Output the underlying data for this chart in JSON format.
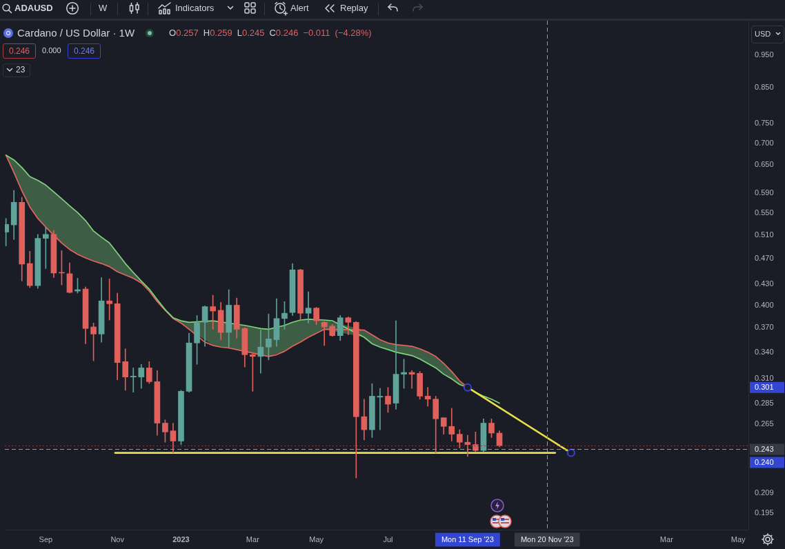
{
  "chart_data": {
    "type": "candlestick",
    "title": "Cardano / US Dollar · 1W",
    "x": [
      "2022-08-01",
      "2022-08-08",
      "2022-08-15",
      "2022-08-22",
      "2022-08-29",
      "2022-09-05",
      "2022-09-12",
      "2022-09-19",
      "2022-09-26",
      "2022-10-03",
      "2022-10-10",
      "2022-10-17",
      "2022-10-24",
      "2022-10-31",
      "2022-11-07",
      "2022-11-14",
      "2022-11-21",
      "2022-11-28",
      "2022-12-05",
      "2022-12-12",
      "2022-12-19",
      "2022-12-26",
      "2023-01-02",
      "2023-01-09",
      "2023-01-16",
      "2023-01-23",
      "2023-01-30",
      "2023-02-06",
      "2023-02-13",
      "2023-02-20",
      "2023-02-27",
      "2023-03-06",
      "2023-03-13",
      "2023-03-20",
      "2023-03-27",
      "2023-04-03",
      "2023-04-10",
      "2023-04-17",
      "2023-04-24",
      "2023-05-01",
      "2023-05-08",
      "2023-05-15",
      "2023-05-22",
      "2023-05-29",
      "2023-06-05",
      "2023-06-12",
      "2023-06-19",
      "2023-06-26",
      "2023-07-03",
      "2023-07-10",
      "2023-07-17",
      "2023-07-24",
      "2023-07-31",
      "2023-08-07",
      "2023-08-14",
      "2023-08-21",
      "2023-08-28",
      "2023-09-04",
      "2023-09-11",
      "2023-09-18",
      "2023-09-25",
      "2023-10-02",
      "2023-10-09"
    ],
    "ohlc": [
      [
        0.515,
        0.54,
        0.491,
        0.529
      ],
      [
        0.528,
        0.595,
        0.502,
        0.571
      ],
      [
        0.571,
        0.581,
        0.435,
        0.461
      ],
      [
        0.462,
        0.482,
        0.425,
        0.428
      ],
      [
        0.428,
        0.511,
        0.424,
        0.504
      ],
      [
        0.504,
        0.524,
        0.454,
        0.511
      ],
      [
        0.511,
        0.518,
        0.44,
        0.447
      ],
      [
        0.448,
        0.483,
        0.429,
        0.447
      ],
      [
        0.446,
        0.463,
        0.417,
        0.418
      ],
      [
        0.42,
        0.439,
        0.417,
        0.422
      ],
      [
        0.423,
        0.426,
        0.35,
        0.369
      ],
      [
        0.371,
        0.376,
        0.33,
        0.362
      ],
      [
        0.362,
        0.44,
        0.352,
        0.406
      ],
      [
        0.406,
        0.438,
        0.38,
        0.402
      ],
      [
        0.402,
        0.417,
        0.309,
        0.328
      ],
      [
        0.329,
        0.344,
        0.298,
        0.312
      ],
      [
        0.312,
        0.322,
        0.296,
        0.313
      ],
      [
        0.312,
        0.326,
        0.3,
        0.322
      ],
      [
        0.322,
        0.329,
        0.305,
        0.307
      ],
      [
        0.307,
        0.319,
        0.255,
        0.266
      ],
      [
        0.266,
        0.269,
        0.249,
        0.258
      ],
      [
        0.259,
        0.266,
        0.24,
        0.25
      ],
      [
        0.25,
        0.298,
        0.247,
        0.297
      ],
      [
        0.297,
        0.363,
        0.296,
        0.351
      ],
      [
        0.351,
        0.386,
        0.326,
        0.376
      ],
      [
        0.377,
        0.399,
        0.347,
        0.398
      ],
      [
        0.398,
        0.414,
        0.368,
        0.392
      ],
      [
        0.393,
        0.404,
        0.355,
        0.364
      ],
      [
        0.364,
        0.422,
        0.346,
        0.4
      ],
      [
        0.4,
        0.41,
        0.357,
        0.368
      ],
      [
        0.369,
        0.37,
        0.323,
        0.337
      ],
      [
        0.337,
        0.338,
        0.297,
        0.335
      ],
      [
        0.335,
        0.367,
        0.316,
        0.346
      ],
      [
        0.346,
        0.388,
        0.331,
        0.356
      ],
      [
        0.355,
        0.409,
        0.347,
        0.382
      ],
      [
        0.382,
        0.405,
        0.368,
        0.389
      ],
      [
        0.39,
        0.462,
        0.386,
        0.452
      ],
      [
        0.452,
        0.453,
        0.38,
        0.389
      ],
      [
        0.389,
        0.419,
        0.376,
        0.396
      ],
      [
        0.396,
        0.397,
        0.374,
        0.379
      ],
      [
        0.377,
        0.378,
        0.348,
        0.371
      ],
      [
        0.372,
        0.374,
        0.359,
        0.36
      ],
      [
        0.36,
        0.386,
        0.354,
        0.383
      ],
      [
        0.383,
        0.384,
        0.361,
        0.377
      ],
      [
        0.377,
        0.378,
        0.22,
        0.272
      ],
      [
        0.272,
        0.289,
        0.251,
        0.26
      ],
      [
        0.26,
        0.305,
        0.253,
        0.292
      ],
      [
        0.291,
        0.3,
        0.26,
        0.292
      ],
      [
        0.292,
        0.301,
        0.276,
        0.284
      ],
      [
        0.285,
        0.379,
        0.279,
        0.315
      ],
      [
        0.315,
        0.332,
        0.3,
        0.317
      ],
      [
        0.317,
        0.319,
        0.3,
        0.315
      ],
      [
        0.316,
        0.318,
        0.289,
        0.292
      ],
      [
        0.292,
        0.301,
        0.282,
        0.289
      ],
      [
        0.289,
        0.292,
        0.24,
        0.27
      ],
      [
        0.271,
        0.271,
        0.256,
        0.263
      ],
      [
        0.263,
        0.28,
        0.25,
        0.256
      ],
      [
        0.256,
        0.26,
        0.244,
        0.249
      ],
      [
        0.249,
        0.255,
        0.237,
        0.247
      ],
      [
        0.247,
        0.258,
        0.241,
        0.242
      ],
      [
        0.242,
        0.27,
        0.241,
        0.266
      ],
      [
        0.266,
        0.27,
        0.253,
        0.257
      ],
      [
        0.257,
        0.259,
        0.245,
        0.246
      ]
    ],
    "colors": [
      "#5fa39b",
      "#5fa39b",
      "#e0605c",
      "#e0605c",
      "#5fa39b",
      "#5fa39b",
      "#e0605c",
      "#e0605c",
      "#e0605c",
      "#5fa39b",
      "#e0605c",
      "#e0605c",
      "#5fa39b",
      "#e0605c",
      "#e0605c",
      "#e0605c",
      "#5fa39b",
      "#5fa39b",
      "#e0605c",
      "#e0605c",
      "#e0605c",
      "#e0605c",
      "#5fa39b",
      "#5fa39b",
      "#5fa39b",
      "#5fa39b",
      "#e0605c",
      "#e0605c",
      "#5fa39b",
      "#e0605c",
      "#e0605c",
      "#e0605c",
      "#5fa39b",
      "#5fa39b",
      "#5fa39b",
      "#5fa39b",
      "#5fa39b",
      "#e0605c",
      "#5fa39b",
      "#e0605c",
      "#e0605c",
      "#e0605c",
      "#5fa39b",
      "#e0605c",
      "#e0605c",
      "#e0605c",
      "#5fa39b",
      "#5fa39b",
      "#e0605c",
      "#5fa39b",
      "#5fa39b",
      "#e0605c",
      "#e0605c",
      "#e0605c",
      "#e0605c",
      "#e0605c",
      "#e0605c",
      "#e0605c",
      "#e0605c",
      "#e0605c",
      "#5fa39b",
      "#e0605c",
      "#e0605c"
    ],
    "series": [
      {
        "type": "line",
        "color": "#80d47c",
        "values": [
          0.672,
          0.661,
          0.644,
          0.624,
          0.616,
          0.606,
          0.592,
          0.578,
          0.564,
          0.551,
          0.536,
          0.517,
          0.506,
          0.496,
          0.479,
          0.462,
          0.448,
          0.435,
          0.423,
          0.408,
          0.394,
          0.383,
          0.379,
          0.377,
          null,
          null,
          0.379,
          null,
          null,
          null,
          0.373,
          0.371,
          0.369,
          0.368,
          null,
          0.373,
          0.377,
          0.38,
          0.381,
          null,
          0.38,
          0.379,
          null,
          null,
          null,
          0.358,
          0.35,
          0.346,
          0.343,
          0.34,
          0.338,
          0.336,
          0.332,
          0.327,
          0.322,
          0.315,
          0.31,
          0.304,
          0.301,
          0.296,
          0.292,
          0.289,
          0.285
        ],
        "upper": [
          0.672,
          0.661,
          0.644,
          0.624,
          0.616,
          0.606,
          null,
          0.578,
          0.564,
          0.551,
          0.536,
          0.517,
          0.506,
          0.496,
          0.479,
          0.462,
          0.448,
          0.435,
          0.423,
          0.408,
          0.394,
          0.383,
          0.379,
          0.377,
          null,
          null,
          0.379,
          null,
          null,
          null,
          null,
          null,
          null,
          0.368,
          null,
          0.373,
          0.377,
          0.38,
          0.381,
          null,
          0.38,
          null,
          null,
          null,
          null,
          0.367,
          0.361,
          0.355,
          0.351,
          0.349,
          0.348,
          0.347,
          0.344,
          0.34,
          0.335,
          0.327,
          0.318,
          0.308,
          0.301,
          null,
          null,
          null,
          null
        ],
        "lower": [
          0.672,
          0.633,
          0.594,
          0.562,
          0.54,
          0.524,
          null,
          0.496,
          0.485,
          0.477,
          0.471,
          0.466,
          0.462,
          0.457,
          0.449,
          0.444,
          0.439,
          0.432,
          0.42,
          0.405,
          0.393,
          0.382,
          0.376,
          0.368,
          null,
          null,
          0.348,
          null,
          null,
          null,
          null,
          null,
          null,
          0.335,
          null,
          0.341,
          0.347,
          0.352,
          0.358,
          null,
          0.368,
          null,
          null,
          null,
          null,
          0.358,
          0.35,
          0.346,
          0.343,
          0.34,
          0.338,
          0.336,
          0.332,
          0.327,
          0.322,
          0.315,
          0.31,
          0.304,
          0.301,
          null,
          null,
          null,
          null
        ]
      },
      {
        "type": "line",
        "color": "#e5645e",
        "values": [
          0.672,
          0.633,
          0.594,
          0.562,
          0.54,
          0.524,
          null,
          0.496,
          0.485,
          0.477,
          0.471,
          0.466,
          0.462,
          0.457,
          0.449,
          0.444,
          0.439,
          0.432,
          0.42,
          0.405,
          0.393,
          0.382,
          0.376,
          0.368,
          null,
          0.352,
          0.348,
          0.346,
          0.345,
          0.343,
          null,
          null,
          null,
          0.335,
          0.337,
          0.341,
          0.347,
          0.352,
          0.358,
          0.363,
          0.368,
          null,
          null,
          null,
          null,
          0.367,
          0.361,
          0.355,
          0.351,
          0.349,
          0.348,
          0.347,
          0.344,
          0.34,
          0.335,
          0.327,
          0.318,
          0.308,
          0.301,
          null,
          null,
          null,
          null
        ]
      },
      {
        "type": "line",
        "color": "#e8e04a",
        "x": [
          "2022-11-05",
          "2023-11-27"
        ],
        "values": [
          0.24,
          0.24
        ]
      },
      {
        "type": "line",
        "color": "#e8e04a",
        "x": [
          "2023-09-11",
          "2023-12-11"
        ],
        "values": [
          0.301,
          0.24
        ],
        "marker": "circle",
        "colors": [
          "#3343d8",
          "#3343d8"
        ]
      }
    ],
    "xlim": [
      "2022-07-31",
      "2024-05-15"
    ],
    "xticks": [
      {
        "value": "2022-09-05",
        "label": "Sep"
      },
      {
        "value": "2022-11-07",
        "label": "Nov"
      },
      {
        "value": "2023-01-02",
        "label": "2023"
      },
      {
        "value": "2023-03-06",
        "label": "Mar"
      },
      {
        "value": "2023-05-01",
        "label": "May"
      },
      {
        "value": "2023-07-03",
        "label": "Jul"
      },
      {
        "value": "2024-03-04",
        "label": "Mar"
      },
      {
        "value": "2024-05-06",
        "label": "May"
      }
    ],
    "ylim": [
      0.184,
      1.07
    ],
    "yticks": [
      {
        "value": 0.195,
        "label": "0.195"
      },
      {
        "value": 0.209,
        "label": "0.209"
      },
      {
        "value": 0.265,
        "label": "0.265"
      },
      {
        "value": 0.285,
        "label": "0.285"
      },
      {
        "value": 0.31,
        "label": "0.310"
      },
      {
        "value": 0.34,
        "label": "0.340"
      },
      {
        "value": 0.37,
        "label": "0.370"
      },
      {
        "value": 0.4,
        "label": "0.400"
      },
      {
        "value": 0.43,
        "label": "0.430"
      },
      {
        "value": 0.47,
        "label": "0.470"
      },
      {
        "value": 0.51,
        "label": "0.510"
      },
      {
        "value": 0.55,
        "label": "0.550"
      },
      {
        "value": 0.59,
        "label": "0.590"
      },
      {
        "value": 0.65,
        "label": "0.650"
      },
      {
        "value": 0.7,
        "label": "0.700"
      },
      {
        "value": 0.75,
        "label": "0.750"
      },
      {
        "value": 0.85,
        "label": "0.850"
      },
      {
        "value": 0.95,
        "label": "0.950"
      }
    ],
    "log": true,
    "ref_lines": [
      {
        "axis": "y",
        "value": 0.246,
        "color": "#8c3438",
        "line_style": "dotted"
      },
      {
        "axis": "y",
        "value": 0.243,
        "label": "0.243",
        "color": "#9598a1",
        "line_style": "dashed"
      },
      {
        "axis": "x",
        "value": "2023-11-20",
        "label": "Mon 20 Nov '23",
        "color": "#9598a1",
        "line_style": "dashed"
      }
    ],
    "annotations": [
      "ADAUSD",
      "W",
      "Indicators",
      "Alert",
      "Replay",
      "O0.257 H0.259 L0.245 C0.246 −0.011 (−4.28%)",
      "0.246",
      "0.000",
      "0.246",
      "23",
      "USD",
      "0.301",
      "0.240",
      "Mon 11 Sep '23"
    ]
  }
}
